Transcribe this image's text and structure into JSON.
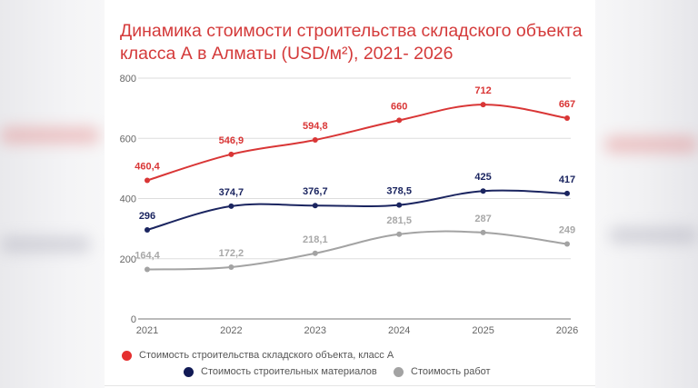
{
  "chart_data": {
    "type": "line",
    "title": "Динамика стоимости строительства складского объекта класса А в Алматы (USD/м²), 2021- 2026",
    "categories": [
      "2021",
      "2022",
      "2023",
      "2024",
      "2025",
      "2026"
    ],
    "ylim": [
      0,
      800
    ],
    "yticks": [
      "0",
      "200",
      "400",
      "600",
      "800"
    ],
    "grid": true,
    "legend_position": "bottom",
    "series": [
      {
        "name": "Стоимость строительства складского объекта, класс А",
        "color": "#d93636",
        "label_color": "#d93636",
        "values": [
          460.4,
          546.9,
          594.8,
          660,
          712,
          667
        ],
        "labels": [
          "460,4",
          "546,9",
          "594,8",
          "660",
          "712",
          "667"
        ]
      },
      {
        "name": "Стоимость строительных материалов",
        "color": "#1b2560",
        "label_color": "#1b2560",
        "values": [
          296,
          374.7,
          376.7,
          378.5,
          425,
          417
        ],
        "labels": [
          "296",
          "374,7",
          "376,7",
          "378,5",
          "425",
          "417"
        ]
      },
      {
        "name": "Стоимость работ",
        "color": "#a3a3a3",
        "label_color": "#a8a8a8",
        "values": [
          164.4,
          172.2,
          218.1,
          281.5,
          287,
          249
        ],
        "labels": [
          "164,4",
          "172,2",
          "218,1",
          "281,5",
          "287",
          "249"
        ]
      }
    ]
  }
}
